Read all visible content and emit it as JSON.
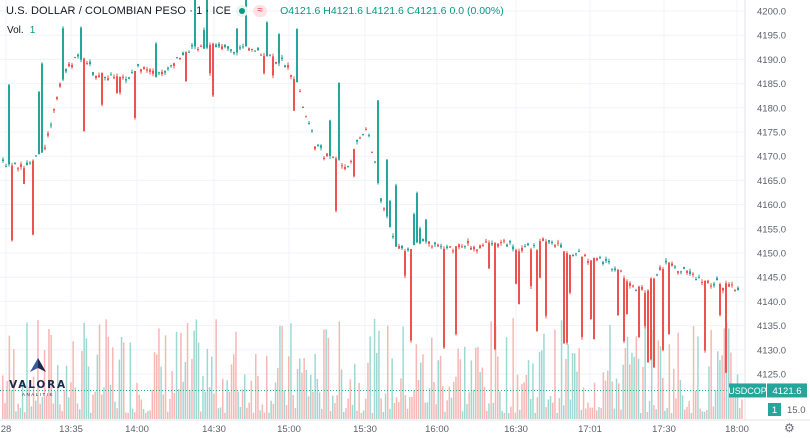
{
  "header": {
    "symbol_title": "U.S. DOLLAR / COLOMBIAN PESO · 1 · ICE",
    "ohlc": {
      "open": "O4121.6",
      "high": "H4121.6",
      "low": "L4121.6",
      "close": "C4121.6",
      "change": "0.0 (0.00%)"
    },
    "vol_label": "Vol.",
    "vol_value": "1",
    "eq_icon": "≈",
    "status_icon": "green-dot-icon"
  },
  "price_tag": {
    "symbol": "USDCOP",
    "value": "4121.6"
  },
  "volume_tag": {
    "value": "1",
    "axis_label": "15.0"
  },
  "logo": {
    "name": "VALORA",
    "sub": "ANALITIK"
  },
  "colors": {
    "up": "#26a69a",
    "down": "#ef5350",
    "vol_up": "#9fd8d2",
    "vol_down": "#f6b7b5",
    "axis_text": "#5d606b",
    "grid": "#f0f3fa"
  },
  "chart_data": {
    "type": "candlestick",
    "y_axis": {
      "ticks": [
        4200.0,
        4195.0,
        4190.0,
        4185.0,
        4180.0,
        4175.0,
        4170.0,
        4165.0,
        4160.0,
        4155.0,
        4150.0,
        4145.0,
        4140.0,
        4135.0,
        4130.0,
        4125.0
      ],
      "range": [
        4121,
        4201
      ]
    },
    "x_axis": {
      "ticks": [
        "28",
        "13:35",
        "14:00",
        "14:30",
        "15:00",
        "15:30",
        "16:00",
        "16:30",
        "17:01",
        "17:30",
        "18:00"
      ]
    },
    "price_path": [
      [
        0,
        4169
      ],
      [
        10,
        4168
      ],
      [
        25,
        4168
      ],
      [
        35,
        4170
      ],
      [
        45,
        4172
      ],
      [
        55,
        4182
      ],
      [
        65,
        4188
      ],
      [
        75,
        4190
      ],
      [
        85,
        4190
      ],
      [
        95,
        4186
      ],
      [
        105,
        4187
      ],
      [
        115,
        4186
      ],
      [
        125,
        4186
      ],
      [
        135,
        4188
      ],
      [
        145,
        4189
      ],
      [
        155,
        4186
      ],
      [
        165,
        4188
      ],
      [
        175,
        4190
      ],
      [
        185,
        4192
      ],
      [
        195,
        4192
      ],
      [
        205,
        4193
      ],
      [
        215,
        4193
      ],
      [
        225,
        4192
      ],
      [
        235,
        4192
      ],
      [
        245,
        4192
      ],
      [
        255,
        4192
      ],
      [
        265,
        4191
      ],
      [
        275,
        4190
      ],
      [
        285,
        4189
      ],
      [
        295,
        4186
      ],
      [
        305,
        4178
      ],
      [
        315,
        4172
      ],
      [
        325,
        4170
      ],
      [
        335,
        4170
      ],
      [
        345,
        4167
      ],
      [
        355,
        4172
      ],
      [
        365,
        4176
      ],
      [
        375,
        4168
      ],
      [
        380,
        4160
      ],
      [
        385,
        4158
      ],
      [
        395,
        4152
      ],
      [
        405,
        4150
      ],
      [
        415,
        4152
      ],
      [
        425,
        4152
      ],
      [
        435,
        4151
      ],
      [
        445,
        4151
      ],
      [
        455,
        4151
      ],
      [
        465,
        4152
      ],
      [
        475,
        4151
      ],
      [
        485,
        4152
      ],
      [
        495,
        4152
      ],
      [
        505,
        4152
      ],
      [
        515,
        4151
      ],
      [
        525,
        4151
      ],
      [
        535,
        4151
      ],
      [
        545,
        4153
      ],
      [
        555,
        4152
      ],
      [
        565,
        4150
      ],
      [
        575,
        4150
      ],
      [
        585,
        4149
      ],
      [
        595,
        4149
      ],
      [
        605,
        4148
      ],
      [
        615,
        4147
      ],
      [
        625,
        4145
      ],
      [
        635,
        4143
      ],
      [
        645,
        4142
      ],
      [
        655,
        4146
      ],
      [
        665,
        4148
      ],
      [
        675,
        4147
      ],
      [
        685,
        4146
      ],
      [
        695,
        4145
      ],
      [
        705,
        4144
      ],
      [
        715,
        4144
      ],
      [
        725,
        4143
      ],
      [
        735,
        4143
      ]
    ],
    "last_price": 4121.6,
    "volume": {
      "max_label": 15.0,
      "last": 1
    }
  }
}
